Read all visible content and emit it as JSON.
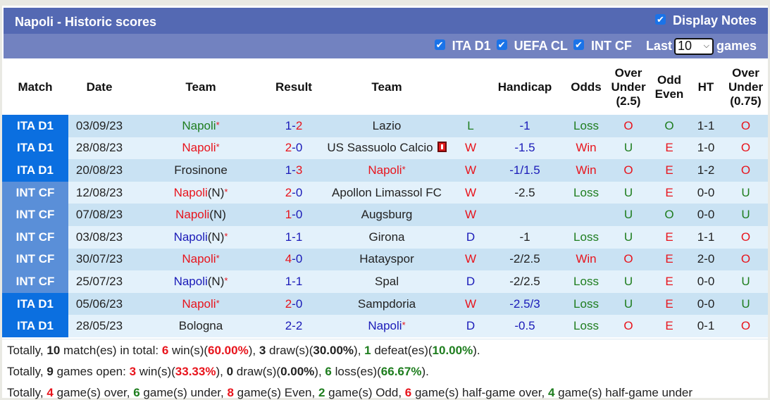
{
  "header": {
    "title": "Napoli - Historic scores",
    "display_notes_label": "Display Notes",
    "display_notes_checked": true
  },
  "filters": {
    "leagues": [
      {
        "label": "ITA D1",
        "checked": true
      },
      {
        "label": "UEFA CL",
        "checked": true
      },
      {
        "label": "INT CF",
        "checked": true
      }
    ],
    "last_label": "Last",
    "last_value": "10",
    "games_label": "games"
  },
  "columns": [
    "Match",
    "Date",
    "Team",
    "Result",
    "Team",
    "",
    "Handicap",
    "Odds",
    "Over Under (2.5)",
    "Odd Even",
    "HT",
    "Over Under (0.75)"
  ],
  "column_parts": {
    "ou25": [
      "Over",
      "Under",
      "(2.5)"
    ],
    "oddeven": [
      "Odd",
      "Even"
    ],
    "ou075": [
      "Over",
      "Under",
      "(0.75)"
    ]
  },
  "colors": {
    "ita_d1": "#0b6fe0",
    "int_cf": "#5a8fd8",
    "row_odd": "#c9e2f3",
    "row_even": "#e3f1fb",
    "red": "#e8141c",
    "blue": "#1a1ab8",
    "green": "#1e7d1e",
    "title_bar": "#5469b3",
    "filter_bar": "#7282c0"
  },
  "rows": [
    {
      "league": "ITA D1",
      "league_class": "ita",
      "date": "03/09/23",
      "home": {
        "name": "Napoli",
        "suffix": "",
        "star": true,
        "color": "green"
      },
      "score_home": "1",
      "score_home_color": "blue",
      "score_away": "2",
      "score_away_color": "red",
      "away": {
        "name": "Lazio",
        "suffix": "",
        "star": false,
        "color": "black",
        "red_card": false
      },
      "wld": "L",
      "wld_color": "green",
      "handicap": "-1",
      "handicap_color": "blue",
      "odds": "Loss",
      "odds_color": "green",
      "ou": "O",
      "ou_color": "red",
      "oe": "O",
      "oe_color": "green",
      "ht": "1-1",
      "ht_ou": "O",
      "ht_ou_color": "red"
    },
    {
      "league": "ITA D1",
      "league_class": "ita",
      "date": "28/08/23",
      "home": {
        "name": "Napoli",
        "suffix": "",
        "star": true,
        "color": "red"
      },
      "score_home": "2",
      "score_home_color": "red",
      "score_away": "0",
      "score_away_color": "blue",
      "away": {
        "name": "US Sassuolo Calcio",
        "suffix": "",
        "star": false,
        "color": "black",
        "red_card": true
      },
      "wld": "W",
      "wld_color": "red",
      "handicap": "-1.5",
      "handicap_color": "blue",
      "odds": "Win",
      "odds_color": "red",
      "ou": "U",
      "ou_color": "green",
      "oe": "E",
      "oe_color": "red",
      "ht": "1-0",
      "ht_ou": "O",
      "ht_ou_color": "red"
    },
    {
      "league": "ITA D1",
      "league_class": "ita",
      "date": "20/08/23",
      "home": {
        "name": "Frosinone",
        "suffix": "",
        "star": false,
        "color": "black"
      },
      "score_home": "1",
      "score_home_color": "blue",
      "score_away": "3",
      "score_away_color": "red",
      "away": {
        "name": "Napoli",
        "suffix": "",
        "star": true,
        "color": "red",
        "red_card": false
      },
      "wld": "W",
      "wld_color": "red",
      "handicap": "-1/1.5",
      "handicap_color": "blue",
      "odds": "Win",
      "odds_color": "red",
      "ou": "O",
      "ou_color": "red",
      "oe": "E",
      "oe_color": "red",
      "ht": "1-2",
      "ht_ou": "O",
      "ht_ou_color": "red"
    },
    {
      "league": "INT CF",
      "league_class": "int",
      "date": "12/08/23",
      "home": {
        "name": "Napoli",
        "suffix": "(N)",
        "star": true,
        "color": "red"
      },
      "score_home": "2",
      "score_home_color": "red",
      "score_away": "0",
      "score_away_color": "blue",
      "away": {
        "name": "Apollon Limassol FC",
        "suffix": "",
        "star": false,
        "color": "black",
        "red_card": false
      },
      "wld": "W",
      "wld_color": "red",
      "handicap": "-2.5",
      "handicap_color": "black",
      "odds": "Loss",
      "odds_color": "green",
      "ou": "U",
      "ou_color": "green",
      "oe": "E",
      "oe_color": "red",
      "ht": "0-0",
      "ht_ou": "U",
      "ht_ou_color": "green"
    },
    {
      "league": "INT CF",
      "league_class": "int",
      "date": "07/08/23",
      "home": {
        "name": "Napoli",
        "suffix": "(N)",
        "star": false,
        "color": "red"
      },
      "score_home": "1",
      "score_home_color": "red",
      "score_away": "0",
      "score_away_color": "blue",
      "away": {
        "name": "Augsburg",
        "suffix": "",
        "star": false,
        "color": "black",
        "red_card": false
      },
      "wld": "W",
      "wld_color": "red",
      "handicap": "",
      "handicap_color": "black",
      "odds": "",
      "odds_color": "black",
      "ou": "U",
      "ou_color": "green",
      "oe": "O",
      "oe_color": "green",
      "ht": "0-0",
      "ht_ou": "U",
      "ht_ou_color": "green"
    },
    {
      "league": "INT CF",
      "league_class": "int",
      "date": "03/08/23",
      "home": {
        "name": "Napoli",
        "suffix": "(N)",
        "star": true,
        "color": "blue"
      },
      "score_home": "1",
      "score_home_color": "blue",
      "score_away": "1",
      "score_away_color": "blue",
      "away": {
        "name": "Girona",
        "suffix": "",
        "star": false,
        "color": "black",
        "red_card": false
      },
      "wld": "D",
      "wld_color": "blue",
      "handicap": "-1",
      "handicap_color": "black",
      "odds": "Loss",
      "odds_color": "green",
      "ou": "U",
      "ou_color": "green",
      "oe": "E",
      "oe_color": "red",
      "ht": "1-1",
      "ht_ou": "O",
      "ht_ou_color": "red"
    },
    {
      "league": "INT CF",
      "league_class": "int",
      "date": "30/07/23",
      "home": {
        "name": "Napoli",
        "suffix": "",
        "star": true,
        "color": "red"
      },
      "score_home": "4",
      "score_home_color": "red",
      "score_away": "0",
      "score_away_color": "blue",
      "away": {
        "name": "Hatayspor",
        "suffix": "",
        "star": false,
        "color": "black",
        "red_card": false
      },
      "wld": "W",
      "wld_color": "red",
      "handicap": "-2/2.5",
      "handicap_color": "black",
      "odds": "Win",
      "odds_color": "red",
      "ou": "O",
      "ou_color": "red",
      "oe": "E",
      "oe_color": "red",
      "ht": "2-0",
      "ht_ou": "O",
      "ht_ou_color": "red"
    },
    {
      "league": "INT CF",
      "league_class": "int",
      "date": "25/07/23",
      "home": {
        "name": "Napoli",
        "suffix": "(N)",
        "star": true,
        "color": "blue"
      },
      "score_home": "1",
      "score_home_color": "blue",
      "score_away": "1",
      "score_away_color": "blue",
      "away": {
        "name": "Spal",
        "suffix": "",
        "star": false,
        "color": "black",
        "red_card": false
      },
      "wld": "D",
      "wld_color": "blue",
      "handicap": "-2/2.5",
      "handicap_color": "black",
      "odds": "Loss",
      "odds_color": "green",
      "ou": "U",
      "ou_color": "green",
      "oe": "E",
      "oe_color": "red",
      "ht": "0-0",
      "ht_ou": "U",
      "ht_ou_color": "green"
    },
    {
      "league": "ITA D1",
      "league_class": "ita",
      "date": "05/06/23",
      "home": {
        "name": "Napoli",
        "suffix": "",
        "star": true,
        "color": "red"
      },
      "score_home": "2",
      "score_home_color": "red",
      "score_away": "0",
      "score_away_color": "blue",
      "away": {
        "name": "Sampdoria",
        "suffix": "",
        "star": false,
        "color": "black",
        "red_card": false
      },
      "wld": "W",
      "wld_color": "red",
      "handicap": "-2.5/3",
      "handicap_color": "blue",
      "odds": "Loss",
      "odds_color": "green",
      "ou": "U",
      "ou_color": "green",
      "oe": "E",
      "oe_color": "red",
      "ht": "0-0",
      "ht_ou": "U",
      "ht_ou_color": "green"
    },
    {
      "league": "ITA D1",
      "league_class": "ita",
      "date": "28/05/23",
      "home": {
        "name": "Bologna",
        "suffix": "",
        "star": false,
        "color": "black"
      },
      "score_home": "2",
      "score_home_color": "blue",
      "score_away": "2",
      "score_away_color": "blue",
      "away": {
        "name": "Napoli",
        "suffix": "",
        "star": true,
        "color": "blue",
        "red_card": false
      },
      "wld": "D",
      "wld_color": "blue",
      "handicap": "-0.5",
      "handicap_color": "blue",
      "odds": "Loss",
      "odds_color": "green",
      "ou": "O",
      "ou_color": "red",
      "oe": "E",
      "oe_color": "red",
      "ht": "0-1",
      "ht_ou": "O",
      "ht_ou_color": "red"
    }
  ],
  "summary": {
    "line1": [
      {
        "t": "Totally, ",
        "c": ""
      },
      {
        "t": "10",
        "c": "b"
      },
      {
        "t": " match(es) in total: ",
        "c": ""
      },
      {
        "t": "6",
        "c": "red b"
      },
      {
        "t": " win(s)(",
        "c": ""
      },
      {
        "t": "60.00%",
        "c": "red b"
      },
      {
        "t": "), ",
        "c": ""
      },
      {
        "t": "3",
        "c": "blue b"
      },
      {
        "t": " draw(s)(",
        "c": ""
      },
      {
        "t": "30.00%",
        "c": "blue b"
      },
      {
        "t": "), ",
        "c": ""
      },
      {
        "t": "1",
        "c": "green b"
      },
      {
        "t": " defeat(es)(",
        "c": ""
      },
      {
        "t": "10.00%",
        "c": "green b"
      },
      {
        "t": ").",
        "c": ""
      }
    ],
    "line2": [
      {
        "t": "Totally, ",
        "c": ""
      },
      {
        "t": "9",
        "c": "b"
      },
      {
        "t": " games open: ",
        "c": ""
      },
      {
        "t": "3",
        "c": "red b"
      },
      {
        "t": " win(s)(",
        "c": ""
      },
      {
        "t": "33.33%",
        "c": "red b"
      },
      {
        "t": "), ",
        "c": ""
      },
      {
        "t": "0",
        "c": "blue b"
      },
      {
        "t": " draw(s)(",
        "c": ""
      },
      {
        "t": "0.00%",
        "c": "blue b"
      },
      {
        "t": "), ",
        "c": ""
      },
      {
        "t": "6",
        "c": "green b"
      },
      {
        "t": " loss(es)(",
        "c": ""
      },
      {
        "t": "66.67%",
        "c": "green b"
      },
      {
        "t": ").",
        "c": ""
      }
    ],
    "line3": [
      {
        "t": "Totally, ",
        "c": ""
      },
      {
        "t": "4",
        "c": "red b"
      },
      {
        "t": " game(s) over, ",
        "c": ""
      },
      {
        "t": "6",
        "c": "green b"
      },
      {
        "t": " game(s) under, ",
        "c": ""
      },
      {
        "t": "8",
        "c": "red b"
      },
      {
        "t": " game(s) Even, ",
        "c": ""
      },
      {
        "t": "2",
        "c": "green b"
      },
      {
        "t": " game(s) Odd, ",
        "c": ""
      },
      {
        "t": "6",
        "c": "red b"
      },
      {
        "t": " game(s) half-game over, ",
        "c": ""
      },
      {
        "t": "4",
        "c": "green b"
      },
      {
        "t": " game(s) half-game under",
        "c": ""
      }
    ]
  }
}
